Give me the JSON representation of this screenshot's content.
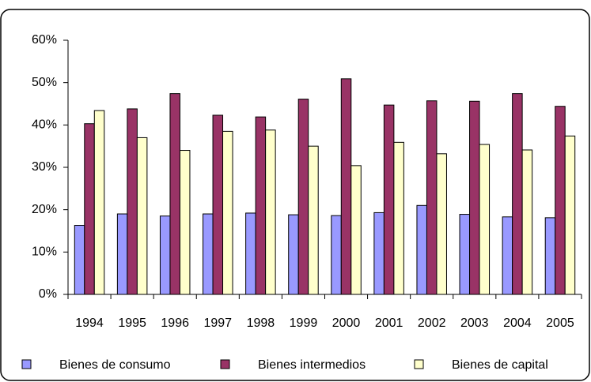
{
  "chart_data": {
    "type": "bar",
    "categories": [
      "1994",
      "1995",
      "1996",
      "1997",
      "1998",
      "1999",
      "2000",
      "2001",
      "2002",
      "2003",
      "2004",
      "2005"
    ],
    "series": [
      {
        "name": "Bienes de consumo",
        "color": "#9999ff",
        "values": [
          16.3,
          19.0,
          18.5,
          19.0,
          19.2,
          18.8,
          18.6,
          19.3,
          21.0,
          18.9,
          18.3,
          18.1
        ]
      },
      {
        "name": "Bienes intermedios",
        "color": "#993366",
        "values": [
          40.3,
          43.8,
          47.4,
          42.3,
          41.9,
          46.1,
          50.9,
          44.7,
          45.7,
          45.6,
          47.4,
          44.4
        ]
      },
      {
        "name": "Bienes de capital",
        "color": "#ffffcc",
        "values": [
          43.4,
          37.0,
          34.0,
          38.5,
          38.8,
          35.0,
          30.4,
          35.9,
          33.2,
          35.4,
          34.1,
          37.4
        ]
      }
    ],
    "ylim": [
      0,
      60
    ],
    "yticks": [
      {
        "value": 0,
        "label": "0%"
      },
      {
        "value": 10,
        "label": "10%"
      },
      {
        "value": 20,
        "label": "20%"
      },
      {
        "value": 30,
        "label": "30%"
      },
      {
        "value": 40,
        "label": "40%"
      },
      {
        "value": 50,
        "label": "50%"
      },
      {
        "value": 60,
        "label": "60%"
      }
    ],
    "grid": false,
    "legend": "bottom"
  }
}
